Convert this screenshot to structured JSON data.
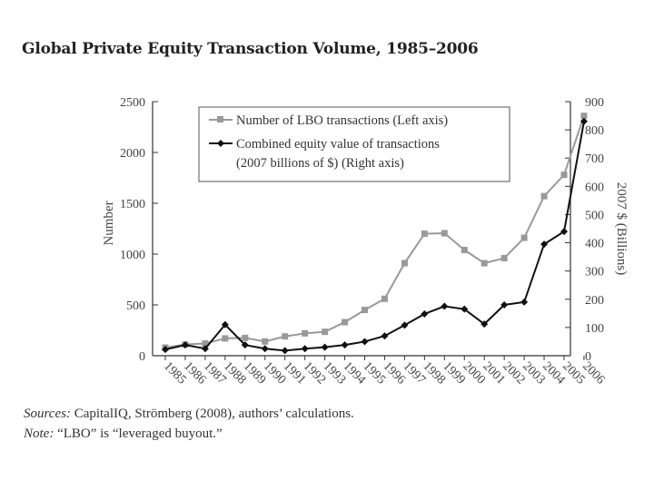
{
  "title": "Global Private Equity Transaction Volume, 1985–2006",
  "chart_data": {
    "type": "line",
    "title": "Global Private Equity Transaction Volume, 1985–2006",
    "categories": [
      "1985",
      "1986",
      "1987",
      "1988",
      "1989",
      "1990",
      "1991",
      "1992",
      "1993",
      "1994",
      "1995",
      "1996",
      "1997",
      "1998",
      "1999",
      "2000",
      "2001",
      "2002",
      "2003",
      "2004",
      "2005",
      "2006"
    ],
    "left_axis": {
      "label": "Number",
      "ylim": [
        0,
        2500
      ],
      "ticks": [
        "0",
        "500",
        "1000",
        "1500",
        "2000",
        "2500"
      ]
    },
    "right_axis": {
      "label": "2007 $ (Billions)",
      "ylim": [
        0,
        900
      ],
      "ticks": [
        "0",
        "100",
        "200",
        "300",
        "400",
        "500",
        "600",
        "700",
        "800",
        "900"
      ]
    },
    "series": [
      {
        "name": "Number of LBO transactions (Left axis)",
        "axis": "left",
        "marker": "square",
        "color": "#999999",
        "values": [
          80,
          110,
          120,
          170,
          175,
          140,
          190,
          220,
          235,
          330,
          450,
          560,
          910,
          1200,
          1205,
          1040,
          910,
          960,
          1160,
          1570,
          1780,
          2360
        ]
      },
      {
        "name": "Combined equity value of transactions (2007 billions of $) (Right axis)",
        "axis": "right",
        "marker": "diamond",
        "color": "#111111",
        "values": [
          22,
          38,
          25,
          110,
          38,
          25,
          18,
          25,
          30,
          38,
          50,
          70,
          108,
          148,
          175,
          165,
          112,
          180,
          190,
          395,
          440,
          830
        ]
      }
    ],
    "legend": {
      "position": "top-left",
      "entries": [
        "Number of LBO transactions (Left axis)",
        "Combined equity value of transactions",
        "(2007 billions of $) (Right axis)"
      ]
    },
    "grid": false
  },
  "captions": {
    "sources_label": "Sources:",
    "sources_text": " CapitalIQ, Strömberg (2008), authors’ calculations.",
    "note_label": "Note:",
    "note_text": " “LBO” is “leveraged buyout.”"
  }
}
